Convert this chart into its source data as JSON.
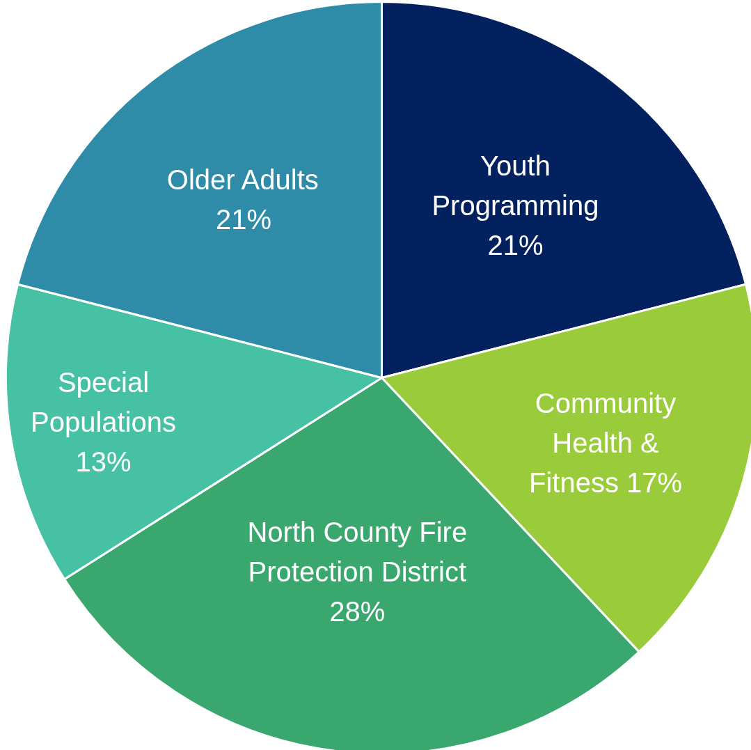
{
  "chart_data": {
    "type": "pie",
    "categories": [
      "Youth Programming",
      "Community Health & Fitness",
      "North County Fire Protection District",
      "Special Populations",
      "Older Adults"
    ],
    "values": [
      21,
      17,
      28,
      13,
      21
    ],
    "colors": [
      "#03215e",
      "#9acb3a",
      "#3aa76f",
      "#46c1a3",
      "#2e8ca8"
    ],
    "value_labels": [
      "21%",
      "17%",
      "28%",
      "13%",
      "21%"
    ]
  }
}
